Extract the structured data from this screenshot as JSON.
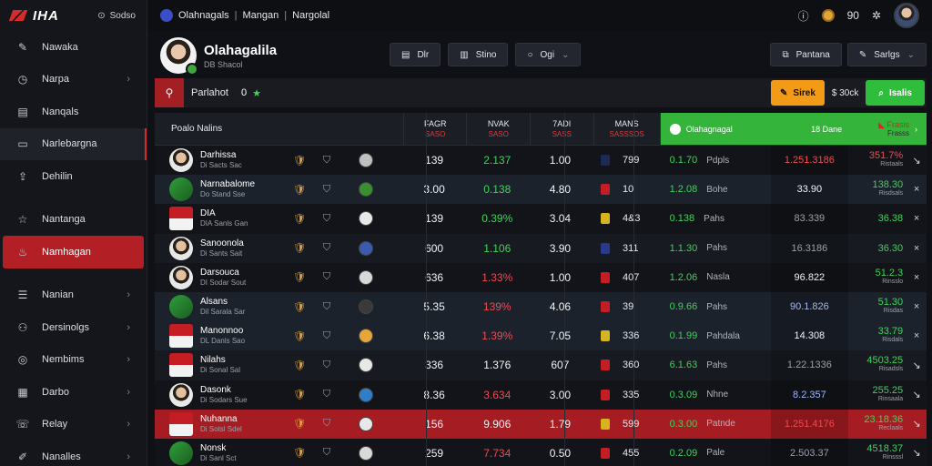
{
  "brand": {
    "name": "IHA",
    "search_label": "Sodso"
  },
  "sidebar": {
    "items": [
      {
        "label": "Nawaka",
        "icon": "pencil-icon",
        "chevron": false,
        "state": ""
      },
      {
        "label": "Narpa",
        "icon": "clock-icon",
        "chevron": true,
        "state": ""
      },
      {
        "label": "Nanqals",
        "icon": "document-icon",
        "chevron": false,
        "state": ""
      },
      {
        "label": "Narlebargna",
        "icon": "inbox-icon",
        "chevron": false,
        "state": "hl"
      },
      {
        "label": "Dehilin",
        "icon": "share-icon",
        "chevron": false,
        "state": ""
      },
      {
        "label": "Nantanga",
        "icon": "star-icon",
        "chevron": false,
        "state": ""
      },
      {
        "label": "Namhagan",
        "icon": "flame-icon",
        "chevron": false,
        "state": "active"
      },
      {
        "label": "Nanian",
        "icon": "list-icon",
        "chevron": true,
        "state": ""
      },
      {
        "label": "Dersinolgs",
        "icon": "users-icon",
        "chevron": true,
        "state": ""
      },
      {
        "label": "Nembims",
        "icon": "target-icon",
        "chevron": true,
        "state": ""
      },
      {
        "label": "Darbo",
        "icon": "chart-icon",
        "chevron": true,
        "state": ""
      },
      {
        "label": "Relay",
        "icon": "phone-icon",
        "chevron": true,
        "state": ""
      },
      {
        "label": "Nanalles",
        "icon": "pen-icon",
        "chevron": true,
        "state": ""
      }
    ]
  },
  "topbar": {
    "crumbs": [
      "Olahnagals",
      "Mangan",
      "Nargolal"
    ],
    "counter": "90"
  },
  "header": {
    "team_name": "Olahagalila",
    "team_sub": "DB Shacol",
    "buttons": [
      {
        "label": "Dlr",
        "icon": "print-icon"
      },
      {
        "label": "Stino",
        "icon": "filter-icon"
      },
      {
        "label": "Ogi",
        "icon": "search-icon"
      }
    ],
    "right_buttons": [
      {
        "label": "Pantana",
        "icon": "copy-icon"
      },
      {
        "label": "Sarlgs",
        "icon": "pin-icon"
      }
    ]
  },
  "filterbar": {
    "label": "Parlahot",
    "count": "0",
    "orange_label": "Sirek",
    "mid_label": "$ 30ck",
    "green_label": "Isalis"
  },
  "table": {
    "columns": [
      {
        "label": "Poalo Nalins",
        "sub": ""
      },
      {
        "label": "FAGR",
        "sub": "SASO"
      },
      {
        "label": "NVAK",
        "sub": "SASO"
      },
      {
        "label": "7ADI",
        "sub": "SASS"
      },
      {
        "label": "MANS",
        "sub": "SASSSOS"
      }
    ],
    "green_header": {
      "label": "Olahagnagal",
      "label2": "18 Dane",
      "red": "Frasis",
      "red_sub": "Frasss"
    },
    "rows": [
      {
        "name": "Darhissa",
        "sub": "Di Sacts Sac",
        "a": "139",
        "b": "2.137",
        "b_color": "green",
        "c": "1.00",
        "d_flag": "#1d2a56",
        "d": "799",
        "e": "0.1.70",
        "e_lbl": "Pdpls",
        "f": "1.251.3186",
        "f_color": "redt",
        "g": "351.7%",
        "g_sub": "Ristaals",
        "g_color": "redt",
        "h": "↘",
        "style": "",
        "avatar": "face",
        "crest": "#c51d24",
        "ball": "#c0c0c0"
      },
      {
        "name": "Narnabalome",
        "sub": "Do Stand Sse",
        "a": "3.00",
        "b": "0.138",
        "b_color": "green",
        "c": "4.80",
        "d_flag": "#c51d24",
        "d": "10",
        "e": "1.2.08",
        "e_lbl": "Bohe",
        "f": "33.90",
        "f_color": "white",
        "g": "138.30",
        "g_sub": "Risdsals",
        "g_color": "green",
        "h": "×",
        "style": "dark",
        "avatar": "green",
        "crest": "#2f9d3a",
        "ball": "#3a8f2e"
      },
      {
        "name": "DIA",
        "sub": "DIA Sanls Gan",
        "a": "139",
        "b": "0.39%",
        "b_color": "green",
        "c": "3.04",
        "d_flag": "#d6b31f",
        "d": "4&3",
        "e": "0.138",
        "e_lbl": "Pahs",
        "f": "83.339",
        "f_color": "gray",
        "g": "36.38",
        "g_sub": "",
        "g_color": "green",
        "h": "×",
        "style": "",
        "avatar": "shield",
        "crest": "#c51d24",
        "ball": "#e8e8e8"
      },
      {
        "name": "Sanoonola",
        "sub": "Di Sants Sait",
        "a": "600",
        "b": "1.106",
        "b_color": "green",
        "c": "3.90",
        "d_flag": "#2a3a8a",
        "d": "311",
        "e": "1.1.30",
        "e_lbl": "Pahs",
        "f": "16.3186",
        "f_color": "gray",
        "g": "36.30",
        "g_sub": "",
        "g_color": "green",
        "h": "×",
        "style": "",
        "avatar": "face",
        "crest": "#2f4a9a",
        "ball": "#3a5ab0"
      },
      {
        "name": "Darsouca",
        "sub": "DI Sodar Sout",
        "a": "636",
        "b": "1.33%",
        "b_color": "redt",
        "c": "1.00",
        "d_flag": "#c51d24",
        "d": "407",
        "e": "1.2.06",
        "e_lbl": "Nasla",
        "f": "96.822",
        "f_color": "white",
        "g": "51.2.3",
        "g_sub": "Rinsslo",
        "g_color": "green",
        "h": "×",
        "style": "",
        "avatar": "face",
        "crest": "#c51d24",
        "ball": "#d9d9d9"
      },
      {
        "name": "Alsans",
        "sub": "Dil Sarala Sar",
        "a": "5.35",
        "b": "139%",
        "b_color": "redt",
        "c": "4.06",
        "d_flag": "#c51d24",
        "d": "39",
        "e": "0.9.66",
        "e_lbl": "Pahs",
        "f": "90.1.826",
        "f_color": "blue",
        "g": "51.30",
        "g_sub": "Risdas",
        "g_color": "green",
        "h": "×",
        "style": "dark",
        "avatar": "green",
        "crest": "#2f9d3a",
        "ball": "#3a3a3a"
      },
      {
        "name": "Manonnoo",
        "sub": "DL Danls Sao",
        "a": "6.38",
        "b": "1.39%",
        "b_color": "redt",
        "c": "7.05",
        "d_flag": "#d6b31f",
        "d": "336",
        "e": "0.1.99",
        "e_lbl": "Pahdala",
        "f": "14.308",
        "f_color": "white",
        "g": "33.79",
        "g_sub": "Risdals",
        "g_color": "green",
        "h": "×",
        "style": "dark",
        "avatar": "shield",
        "crest": "#2f4a9a",
        "ball": "#e7a63a"
      },
      {
        "name": "Nilahs",
        "sub": "Di Sonal Sal",
        "a": "336",
        "b": "1.376",
        "b_color": "white",
        "c": "607",
        "d_flag": "#c51d24",
        "d": "360",
        "e": "6.1.63",
        "e_lbl": "Pahs",
        "f": "1.22.1336",
        "f_color": "gray",
        "g": "4503.25",
        "g_sub": "Risadsls",
        "g_color": "green",
        "h": "↘",
        "style": "",
        "avatar": "shield",
        "crest": "#c51d24",
        "ball": "#e8e8e8"
      },
      {
        "name": "Dasonk",
        "sub": "Di Sodars Sue",
        "a": "8.36",
        "b": "3.634",
        "b_color": "redt",
        "c": "3.00",
        "d_flag": "#c51d24",
        "d": "335",
        "e": "0.3.09",
        "e_lbl": "Nhne",
        "f": "8.2.357",
        "f_color": "blue",
        "g": "255.25",
        "g_sub": "Rinsaala",
        "g_color": "green",
        "h": "↘",
        "style": "",
        "avatar": "face",
        "crest": "#c51d24",
        "ball": "#2f7fc8"
      },
      {
        "name": "Nuhanna",
        "sub": "Di Sotsl Sdel",
        "a": "156",
        "b": "9.906",
        "b_color": "white",
        "c": "1.79",
        "d_flag": "#d6b31f",
        "d": "599",
        "e": "0.3.00",
        "e_lbl": "Patnde",
        "f": "1.251.4176",
        "f_color": "redt",
        "g": "23.18.36",
        "g_sub": "Reclaals",
        "g_color": "green",
        "h": "↘",
        "style": "red",
        "avatar": "shield",
        "crest": "#c51d24",
        "ball": "#e8e8e8"
      },
      {
        "name": "Nonsk",
        "sub": "Di Sanl Sct",
        "a": "259",
        "b": "7.734",
        "b_color": "redt",
        "c": "0.50",
        "d_flag": "#c51d24",
        "d": "455",
        "e": "0.2.09",
        "e_lbl": "Pale",
        "f": "2.503.37",
        "f_color": "gray",
        "g": "4518.37",
        "g_sub": "Rinsssl",
        "g_color": "green",
        "h": "↘",
        "style": "",
        "avatar": "green",
        "crest": "#2f9d3a",
        "ball": "#d9d9d9"
      }
    ]
  }
}
